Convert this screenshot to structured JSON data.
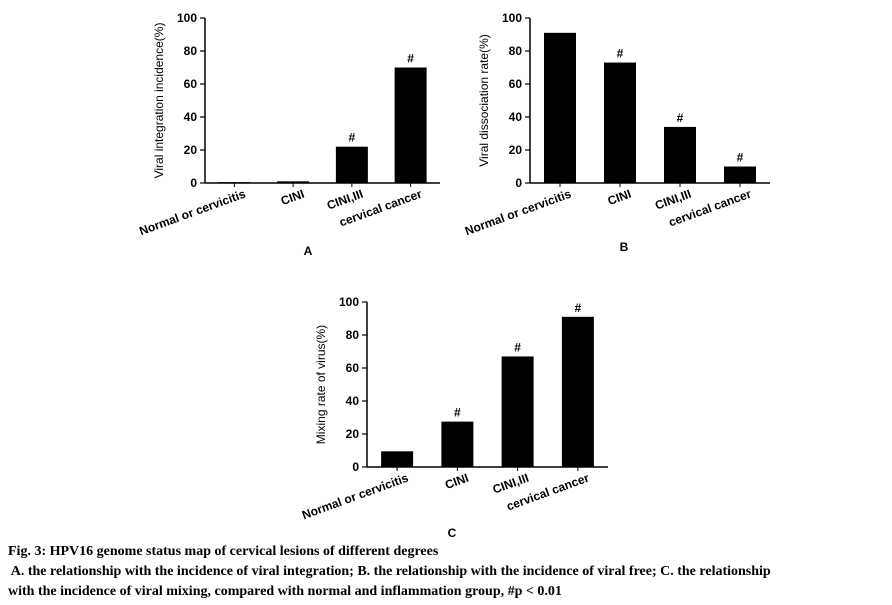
{
  "chart_data": [
    {
      "type": "bar",
      "panel_label": "A",
      "y_label": "Viral integration incidence(%)",
      "categories": [
        "Normal or cervicitis",
        "CINI",
        "CINI,III",
        "cervical cancer"
      ],
      "values": [
        0.5,
        1,
        22,
        70
      ],
      "color": "#000000",
      "ylim": [
        0,
        100
      ],
      "yticks": [
        0,
        20,
        40,
        60,
        80,
        100
      ],
      "annotations": [
        {
          "text": "#",
          "x": "CINI,III"
        },
        {
          "text": "#",
          "x": "cervical cancer"
        }
      ]
    },
    {
      "type": "bar",
      "panel_label": "B",
      "y_label": "Viral dissociation rate(%)",
      "categories": [
        "Normal or cervicitis",
        "CINI",
        "CINI,III",
        "cervical cancer"
      ],
      "values": [
        91,
        73,
        34,
        10
      ],
      "color": "#000000",
      "ylim": [
        0,
        100
      ],
      "yticks": [
        0,
        20,
        40,
        60,
        80,
        100
      ],
      "annotations": [
        {
          "text": "#",
          "x": "CINI"
        },
        {
          "text": "#",
          "x": "CINI,III"
        },
        {
          "text": "#",
          "x": "cervical cancer"
        }
      ]
    },
    {
      "type": "bar",
      "panel_label": "C",
      "y_label": "Mixing rate of virus(%)",
      "categories": [
        "Normal or cervicitis",
        "CINI",
        "CINI,III",
        "cervical cancer"
      ],
      "values": [
        9.5,
        27.5,
        67,
        91
      ],
      "color": "#000000",
      "ylim": [
        0,
        100
      ],
      "yticks": [
        0,
        20,
        40,
        60,
        80,
        100
      ],
      "annotations": [
        {
          "text": "#",
          "x": "CINI"
        },
        {
          "text": "#",
          "x": "CINI,III"
        },
        {
          "text": "#",
          "x": "cervical cancer"
        }
      ]
    }
  ],
  "caption": {
    "title": "Fig. 3: HPV16 genome status map of cervical lesions of different degrees",
    "lines": [
      " A. the relationship with the incidence of viral integration; B. the relationship with the incidence of viral free; C. the relationship",
      "with the incidence of viral mixing, compared with normal and inflammation group, #p < 0.01"
    ]
  }
}
